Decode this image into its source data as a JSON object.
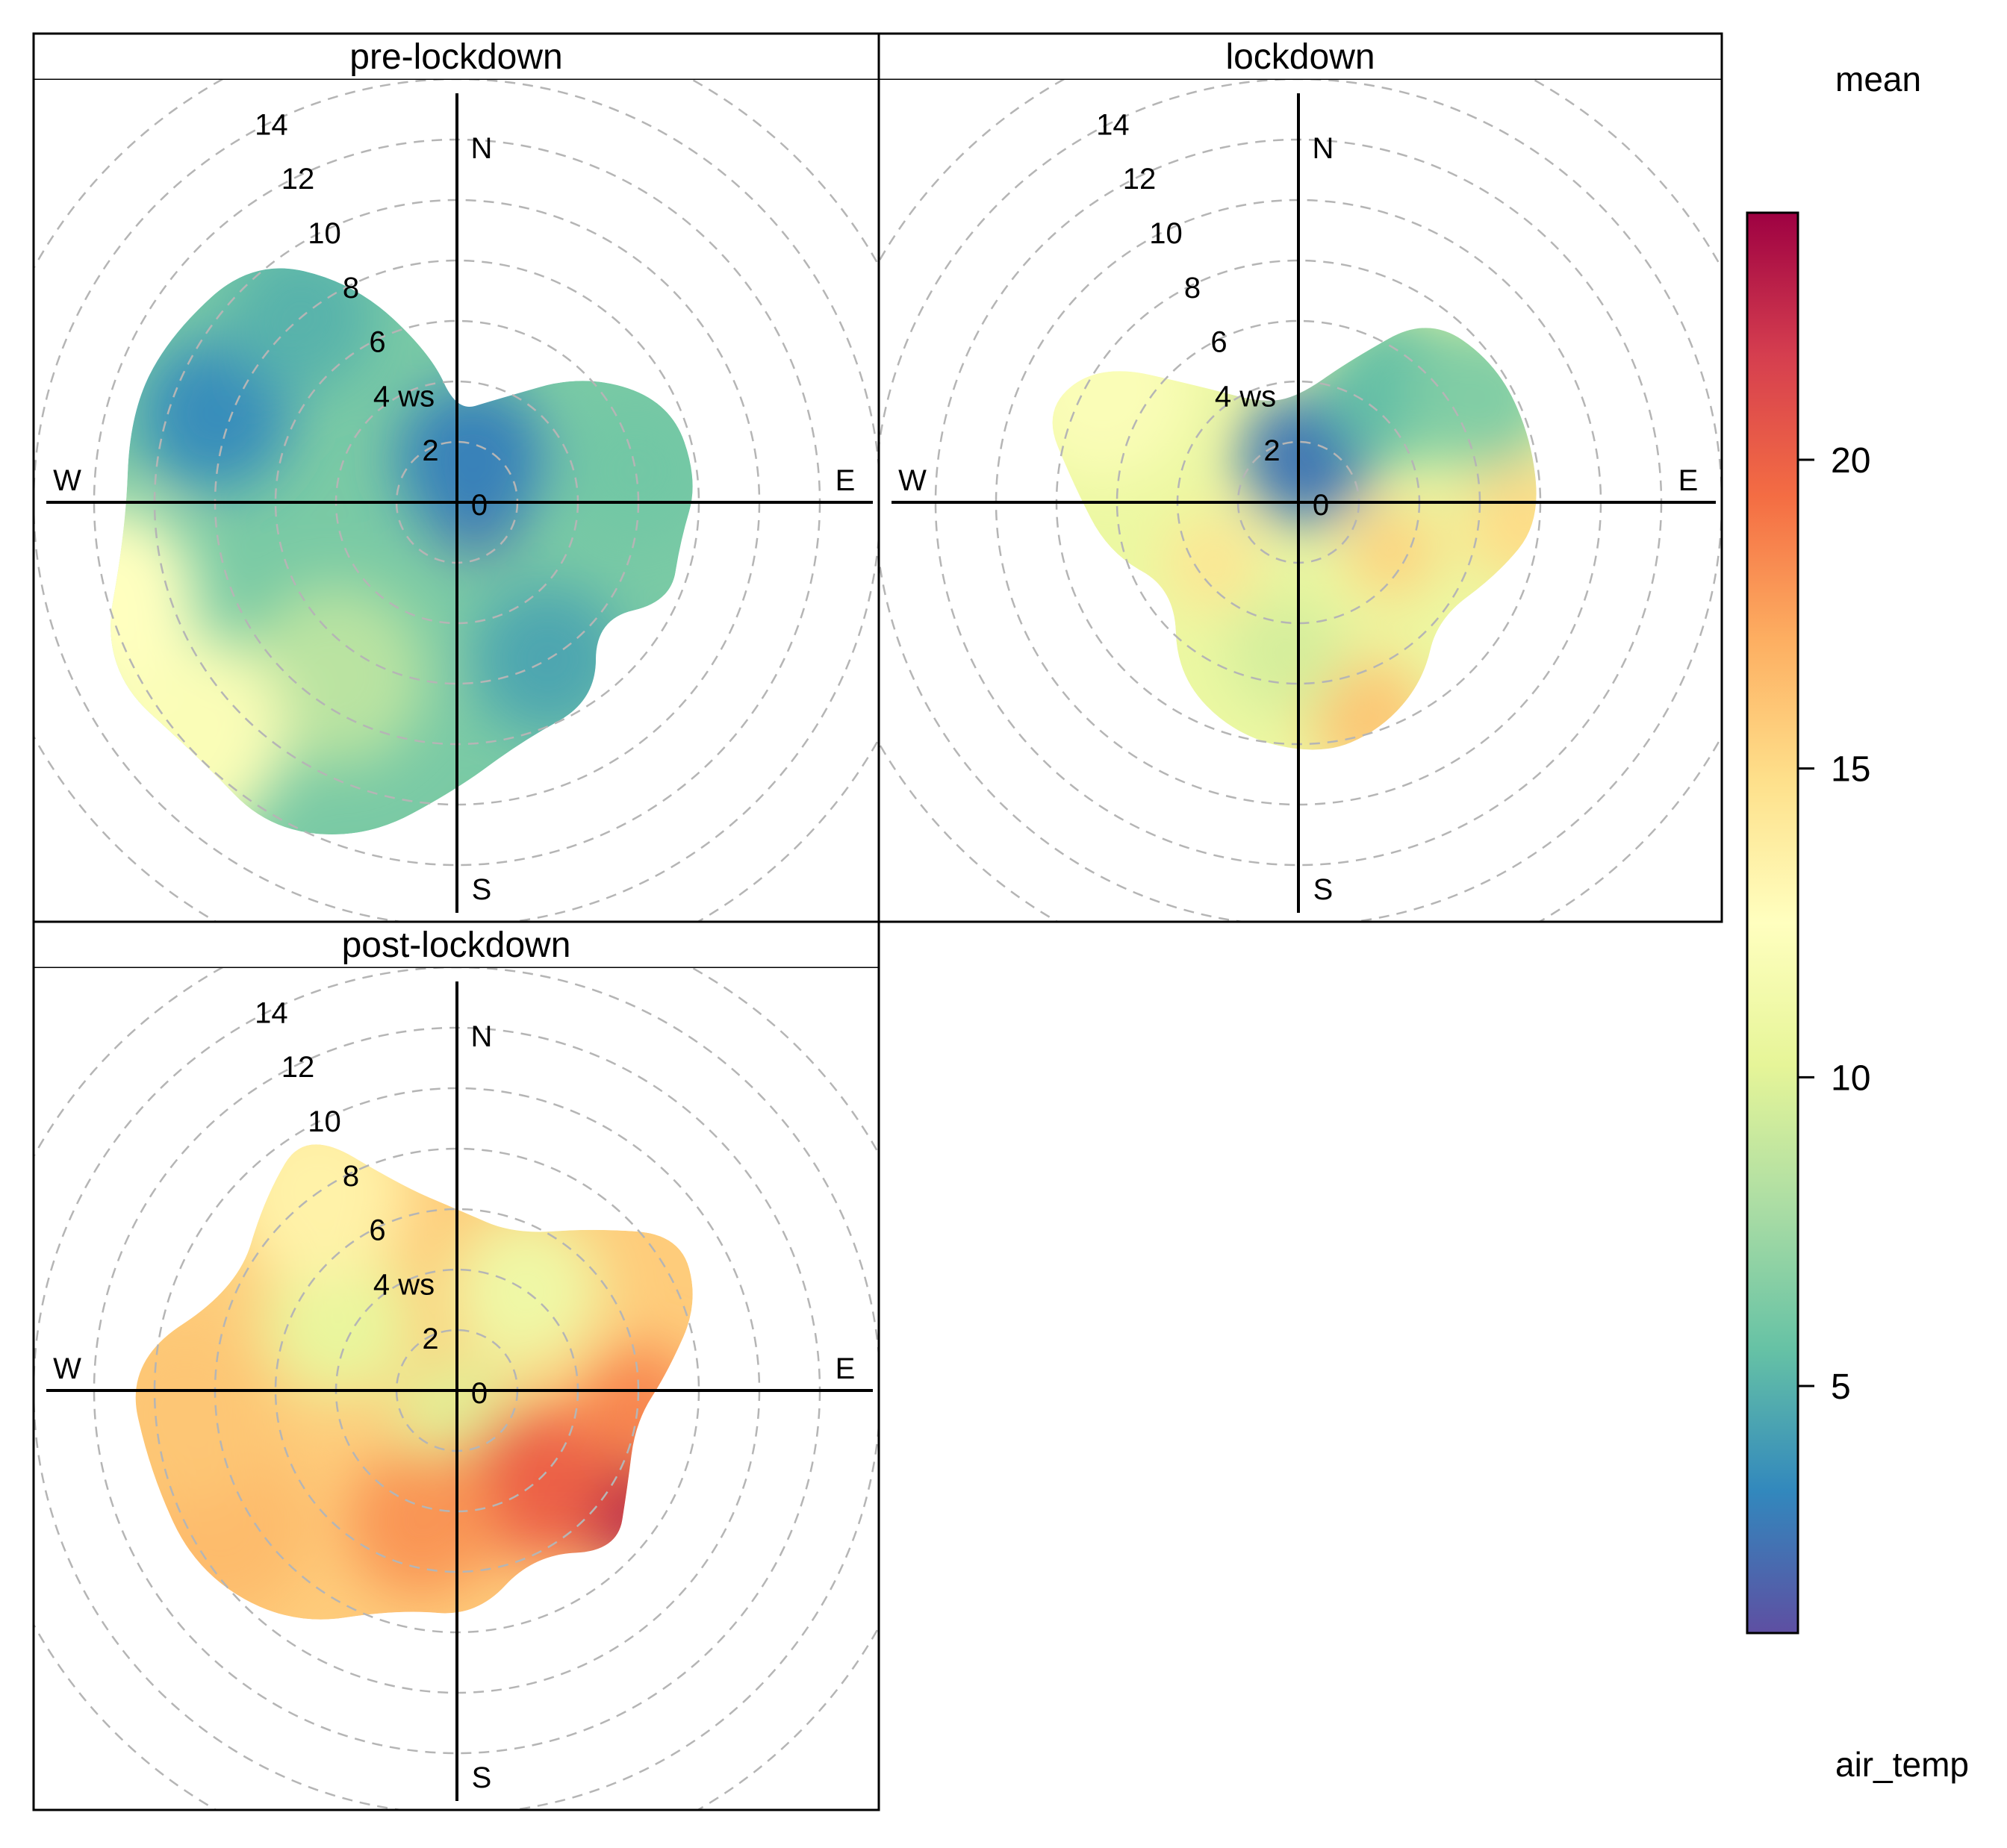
{
  "chart_data": {
    "type": "heatmap",
    "subtype": "polar-plot",
    "statistic_label": "mean",
    "variable_label": "air_temp",
    "radial_label": "ws",
    "radial_ticks": [
      0,
      2,
      4,
      6,
      8,
      10,
      12,
      14
    ],
    "radial_max": 14,
    "compass": {
      "north": "N",
      "east": "E",
      "south": "S",
      "west": "W"
    },
    "colorbar": {
      "min": 1,
      "max": 24,
      "ticks": [
        5,
        10,
        15,
        20
      ],
      "stops": [
        "#5E4FA2",
        "#3288BD",
        "#66C2A5",
        "#ABDDA4",
        "#E6F598",
        "#FFFFBF",
        "#FEE08B",
        "#FDAE61",
        "#F46D43",
        "#D53E4F",
        "#9E0142"
      ]
    },
    "panels": [
      {
        "title": "pre-lockdown",
        "extent": [
          {
            "dir": 0,
            "ws": 3.0
          },
          {
            "dir": 20,
            "ws": 3.6
          },
          {
            "dir": 45,
            "ws": 6.0
          },
          {
            "dir": 65,
            "ws": 7.8
          },
          {
            "dir": 85,
            "ws": 8.0
          },
          {
            "dir": 100,
            "ws": 7.5
          },
          {
            "dir": 115,
            "ws": 7.8
          },
          {
            "dir": 130,
            "ws": 6.0
          },
          {
            "dir": 145,
            "ws": 8.0
          },
          {
            "dir": 165,
            "ws": 8.2
          },
          {
            "dir": 180,
            "ws": 9.5
          },
          {
            "dir": 195,
            "ws": 11.5
          },
          {
            "dir": 210,
            "ws": 12.5
          },
          {
            "dir": 225,
            "ws": 12.0
          },
          {
            "dir": 245,
            "ws": 13.0
          },
          {
            "dir": 265,
            "ws": 11.0
          },
          {
            "dir": 285,
            "ws": 11.2
          },
          {
            "dir": 300,
            "ws": 11.0
          },
          {
            "dir": 320,
            "ws": 10.5
          },
          {
            "dir": 335,
            "ws": 8.0
          },
          {
            "dir": 350,
            "ws": 5.0
          }
        ],
        "hotspots": [
          {
            "dir": 100,
            "ws": 0.6,
            "value": 1.5,
            "spread": 1.6
          },
          {
            "dir": 20,
            "ws": 1.5,
            "value": 3.0,
            "spread": 2.5
          },
          {
            "dir": 290,
            "ws": 8.5,
            "value": 3.5,
            "spread": 2.5
          },
          {
            "dir": 320,
            "ws": 8.0,
            "value": 5.0,
            "spread": 2.5
          },
          {
            "dir": 80,
            "ws": 6.0,
            "value": 6.0,
            "spread": 2.5
          },
          {
            "dir": 150,
            "ws": 6.0,
            "value": 4.5,
            "spread": 2.5
          },
          {
            "dir": 215,
            "ws": 7.0,
            "value": 8.5,
            "spread": 3.0
          },
          {
            "dir": 230,
            "ws": 12.0,
            "value": 12.0,
            "spread": 3.5
          },
          {
            "dir": 255,
            "ws": 12.0,
            "value": 12.5,
            "spread": 3.0
          }
        ]
      },
      {
        "title": "lockdown",
        "extent": [
          {
            "dir": 0,
            "ws": 3.5
          },
          {
            "dir": 20,
            "ws": 5.0
          },
          {
            "dir": 35,
            "ws": 7.5
          },
          {
            "dir": 55,
            "ws": 8.0
          },
          {
            "dir": 75,
            "ws": 8.0
          },
          {
            "dir": 95,
            "ws": 8.0
          },
          {
            "dir": 110,
            "ws": 7.0
          },
          {
            "dir": 130,
            "ws": 6.0
          },
          {
            "dir": 145,
            "ws": 7.2
          },
          {
            "dir": 160,
            "ws": 8.0
          },
          {
            "dir": 175,
            "ws": 8.4
          },
          {
            "dir": 195,
            "ws": 8.0
          },
          {
            "dir": 215,
            "ws": 7.0
          },
          {
            "dir": 235,
            "ws": 5.0
          },
          {
            "dir": 255,
            "ws": 6.5
          },
          {
            "dir": 275,
            "ws": 7.5
          },
          {
            "dir": 290,
            "ws": 9.0
          },
          {
            "dir": 305,
            "ws": 8.0
          },
          {
            "dir": 320,
            "ws": 5.0
          },
          {
            "dir": 340,
            "ws": 3.5
          }
        ],
        "hotspots": [
          {
            "dir": 10,
            "ws": 1.5,
            "value": 2.5,
            "spread": 2.2
          },
          {
            "dir": 40,
            "ws": 5.0,
            "value": 5.5,
            "spread": 2.5
          },
          {
            "dir": 60,
            "ws": 7.0,
            "value": 6.5,
            "spread": 2.5
          },
          {
            "dir": 95,
            "ws": 7.5,
            "value": 15.0,
            "spread": 2.0
          },
          {
            "dir": 118,
            "ws": 3.5,
            "value": 15.5,
            "spread": 1.5
          },
          {
            "dir": 162,
            "ws": 7.5,
            "value": 16.0,
            "spread": 2.0
          },
          {
            "dir": 235,
            "ws": 3.5,
            "value": 14.5,
            "spread": 1.5
          },
          {
            "dir": 185,
            "ws": 5.0,
            "value": 9.5,
            "spread": 2.0
          },
          {
            "dir": 300,
            "ws": 7.5,
            "value": 12.0,
            "spread": 3.0
          }
        ]
      },
      {
        "title": "post-lockdown",
        "extent": [
          {
            "dir": 0,
            "ws": 6.0
          },
          {
            "dir": 20,
            "ws": 5.5
          },
          {
            "dir": 40,
            "ws": 7.0
          },
          {
            "dir": 55,
            "ws": 9.0
          },
          {
            "dir": 70,
            "ws": 8.5
          },
          {
            "dir": 85,
            "ws": 7.0
          },
          {
            "dir": 100,
            "ws": 6.0
          },
          {
            "dir": 120,
            "ws": 6.5
          },
          {
            "dir": 135,
            "ws": 7.5
          },
          {
            "dir": 155,
            "ws": 6.0
          },
          {
            "dir": 175,
            "ws": 7.5
          },
          {
            "dir": 195,
            "ws": 7.5
          },
          {
            "dir": 215,
            "ws": 9.5
          },
          {
            "dir": 235,
            "ws": 10.5
          },
          {
            "dir": 255,
            "ws": 10.5
          },
          {
            "dir": 275,
            "ws": 11.0
          },
          {
            "dir": 295,
            "ws": 8.0
          },
          {
            "dir": 315,
            "ws": 9.0
          },
          {
            "dir": 330,
            "ws": 10.0
          },
          {
            "dir": 345,
            "ws": 7.0
          }
        ],
        "hotspots": [
          {
            "dir": 180,
            "ws": 1.0,
            "value": 10.0,
            "spread": 2.0
          },
          {
            "dir": 300,
            "ws": 4.5,
            "value": 10.5,
            "spread": 2.5
          },
          {
            "dir": 35,
            "ws": 4.0,
            "value": 11.0,
            "spread": 2.5
          },
          {
            "dir": 325,
            "ws": 8.0,
            "value": 13.5,
            "spread": 3.0
          },
          {
            "dir": 125,
            "ws": 6.5,
            "value": 23.0,
            "spread": 2.0
          },
          {
            "dir": 140,
            "ws": 4.0,
            "value": 20.0,
            "spread": 2.5
          },
          {
            "dir": 95,
            "ws": 6.0,
            "value": 18.5,
            "spread": 2.0
          },
          {
            "dir": 195,
            "ws": 4.5,
            "value": 18.0,
            "spread": 2.5
          },
          {
            "dir": 240,
            "ws": 9.0,
            "value": 16.5,
            "spread": 3.0
          },
          {
            "dir": 265,
            "ws": 9.0,
            "value": 16.0,
            "spread": 3.0
          }
        ]
      }
    ]
  }
}
